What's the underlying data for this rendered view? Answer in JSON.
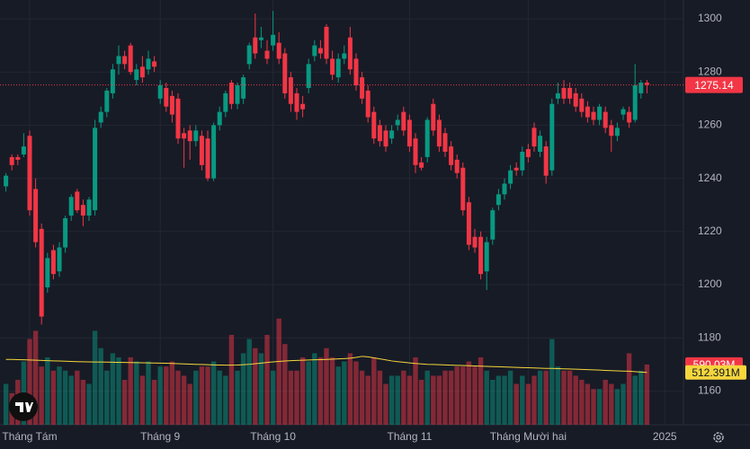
{
  "chart_data": {
    "type": "candlestick",
    "categories": [
      null,
      null,
      null,
      null,
      "Tháng Tám",
      null,
      null,
      null,
      null,
      null,
      null,
      null,
      null,
      null,
      null,
      null,
      null,
      null,
      null,
      null,
      null,
      null,
      null,
      null,
      null,
      null,
      "Tháng 9",
      null,
      null,
      null,
      null,
      null,
      null,
      null,
      null,
      null,
      null,
      null,
      null,
      null,
      null,
      null,
      null,
      null,
      null,
      "Tháng 10",
      null,
      null,
      null,
      null,
      null,
      null,
      null,
      null,
      null,
      null,
      null,
      null,
      null,
      null,
      null,
      null,
      null,
      null,
      null,
      null,
      null,
      null,
      "Tháng 11",
      null,
      null,
      null,
      null,
      null,
      null,
      null,
      null,
      null,
      null,
      null,
      null,
      null,
      null,
      null,
      null,
      null,
      null,
      null,
      "Tháng Mười hai",
      null,
      null,
      null,
      null,
      null,
      null,
      null,
      null,
      null,
      null,
      null,
      null,
      null,
      null,
      null,
      null,
      null,
      null,
      null,
      null,
      null,
      null,
      "2025"
    ],
    "open": [
      1237,
      1248,
      1248,
      1249,
      1256,
      1236,
      1221,
      1199,
      1213,
      1205,
      1214,
      1226,
      1235,
      1230,
      1226,
      1228,
      1261,
      1265,
      1272,
      1283,
      1286,
      1290,
      1277,
      1282,
      1281,
      1284,
      1270,
      1274,
      1271,
      1270,
      1257,
      1258,
      1254,
      1256,
      1255,
      1240,
      1260,
      1265,
      1276,
      1268,
      1270,
      1283,
      1293,
      1292,
      1288,
      1290,
      1291,
      1287,
      1278,
      1272,
      1268,
      1274,
      1286,
      1289,
      1297,
      1285,
      1278,
      1285,
      1293,
      1285,
      1278,
      1273,
      1265,
      1260,
      1258,
      1255,
      1260,
      1265,
      1262,
      1255,
      1246,
      1248,
      1268,
      1262,
      1257,
      1252,
      1247,
      1244,
      1231,
      1218,
      1218,
      1205,
      1217,
      1230,
      1234,
      1238,
      1244,
      1243,
      1251,
      1259,
      1250,
      1252,
      1243,
      1270,
      1274,
      1274,
      1272,
      1270,
      1267,
      1265,
      1262,
      1265,
      1260,
      1256,
      1264,
      1265,
      1262,
      1272,
      1276,
      null,
      null,
      null
    ],
    "high": [
      1242,
      1249,
      1249,
      1257,
      1258,
      1240,
      1223,
      1212,
      1215,
      1216,
      1226,
      1234,
      1236,
      1232,
      1233,
      1262,
      1267,
      1274,
      1283,
      1290,
      1288,
      1291,
      1283,
      1286,
      1288,
      1286,
      1277,
      1276,
      1273,
      1272,
      1259,
      1260,
      1260,
      1258,
      1258,
      1261,
      1267,
      1273,
      1277,
      1276,
      1279,
      1291,
      1302,
      1297,
      1292,
      1303,
      1295,
      1289,
      1280,
      1274,
      1271,
      1285,
      1292,
      1292,
      1298,
      1288,
      1287,
      1290,
      1297,
      1287,
      1280,
      1275,
      1267,
      1262,
      1260,
      1260,
      1264,
      1267,
      1264,
      1257,
      1248,
      1263,
      1270,
      1264,
      1259,
      1254,
      1249,
      1246,
      1233,
      1221,
      1220,
      1218,
      1229,
      1236,
      1240,
      1245,
      1246,
      1252,
      1253,
      1261,
      1258,
      1254,
      1270,
      1276,
      1277,
      1276,
      1274,
      1272,
      1269,
      1267,
      1268,
      1267,
      1262,
      1261,
      1267,
      1267,
      1283,
      1277,
      1277,
      null,
      null,
      null
    ],
    "low": [
      1235,
      1243,
      1245,
      1248,
      1226,
      1214,
      1185,
      1197,
      1202,
      1203,
      1212,
      1224,
      1227,
      1222,
      1224,
      1226,
      1259,
      1263,
      1270,
      1279,
      1281,
      1279,
      1275,
      1276,
      1279,
      1280,
      1268,
      1265,
      1261,
      1253,
      1244,
      1247,
      1252,
      1243,
      1239,
      1239,
      1258,
      1263,
      1266,
      1266,
      1268,
      1281,
      1285,
      1289,
      1283,
      1288,
      1283,
      1270,
      1265,
      1262,
      1263,
      1272,
      1284,
      1285,
      1283,
      1277,
      1276,
      1283,
      1279,
      1273,
      1268,
      1261,
      1253,
      1252,
      1250,
      1253,
      1258,
      1256,
      1250,
      1242,
      1243,
      1246,
      1256,
      1250,
      1248,
      1243,
      1240,
      1226,
      1213,
      1212,
      1202,
      1198,
      1215,
      1228,
      1232,
      1236,
      1241,
      1241,
      1246,
      1250,
      1248,
      1238,
      1241,
      1268,
      1268,
      1268,
      1265,
      1263,
      1261,
      1260,
      1260,
      1257,
      1250,
      1254,
      1262,
      1259,
      1261,
      1270,
      1272,
      null,
      null,
      null
    ],
    "close": [
      1241,
      1245,
      1247,
      1252,
      1228,
      1216,
      1188,
      1210,
      1204,
      1214,
      1225,
      1233,
      1228,
      1226,
      1232,
      1259,
      1265,
      1273,
      1281,
      1286,
      1283,
      1280,
      1281,
      1278,
      1285,
      1282,
      1275,
      1267,
      1264,
      1255,
      1255,
      1254,
      1258,
      1245,
      1240,
      1260,
      1265,
      1272,
      1268,
      1275,
      1278,
      1290,
      1287,
      1293,
      1285,
      1294,
      1285,
      1272,
      1268,
      1265,
      1266,
      1283,
      1290,
      1287,
      1285,
      1279,
      1285,
      1287,
      1281,
      1275,
      1270,
      1263,
      1255,
      1254,
      1252,
      1258,
      1262,
      1258,
      1252,
      1245,
      1244,
      1262,
      1258,
      1252,
      1250,
      1245,
      1242,
      1228,
      1215,
      1214,
      1204,
      1216,
      1228,
      1234,
      1238,
      1243,
      1243,
      1250,
      1248,
      1252,
      1256,
      1241,
      1268,
      1272,
      1270,
      1270,
      1267,
      1265,
      1263,
      1262,
      1267,
      1259,
      1256,
      1259,
      1266,
      1261,
      1275,
      1276,
      1275.14,
      null,
      null,
      null
    ],
    "volume": [
      400,
      310,
      440,
      620,
      840,
      920,
      570,
      660,
      530,
      570,
      530,
      480,
      530,
      440,
      400,
      920,
      750,
      530,
      700,
      660,
      440,
      660,
      620,
      480,
      620,
      440,
      570,
      570,
      620,
      530,
      480,
      400,
      530,
      570,
      570,
      620,
      530,
      480,
      880,
      530,
      700,
      840,
      750,
      700,
      880,
      530,
      1040,
      790,
      530,
      530,
      660,
      620,
      700,
      660,
      750,
      660,
      570,
      620,
      700,
      620,
      530,
      480,
      660,
      530,
      400,
      480,
      480,
      530,
      480,
      660,
      440,
      530,
      480,
      480,
      530,
      530,
      570,
      570,
      620,
      570,
      660,
      530,
      440,
      480,
      480,
      530,
      400,
      480,
      400,
      480,
      530,
      530,
      840,
      570,
      530,
      530,
      480,
      440,
      400,
      350,
      350,
      440,
      400,
      350,
      400,
      700,
      480,
      530,
      590.03,
      null,
      null,
      null
    ],
    "volume_ma": [
      640,
      640,
      638,
      636,
      634,
      632,
      630,
      628,
      626,
      624,
      622,
      620,
      618,
      617,
      616,
      615,
      614,
      613,
      612,
      611,
      610,
      609,
      608,
      607,
      606,
      605,
      604,
      602,
      600,
      598,
      596,
      594,
      592,
      590,
      588,
      586,
      585,
      584,
      584,
      585,
      588,
      592,
      598,
      604,
      610,
      616,
      620,
      624,
      628,
      630,
      632,
      634,
      636,
      638,
      640,
      642,
      645,
      648,
      652,
      660,
      670,
      665,
      655,
      645,
      635,
      625,
      618,
      612,
      606,
      600,
      596,
      592,
      590,
      588,
      586,
      584,
      582,
      580,
      578,
      576,
      574,
      572,
      570,
      568,
      566,
      564,
      562,
      560,
      558,
      556,
      554,
      552,
      552,
      550,
      548,
      546,
      544,
      542,
      540,
      538,
      535,
      532,
      530,
      528,
      526,
      524,
      520,
      516,
      512.391,
      null,
      null,
      null
    ],
    "volume_last_label": "590.03M",
    "volume_ma_last_label": "512.391M",
    "up_color": "#089981",
    "down_color": "#f23645",
    "ma_color": "#f5d63d",
    "ylim": [
      1147.3,
      1307.1
    ],
    "yticks": [
      1160,
      1180,
      1200,
      1220,
      1240,
      1260,
      1280,
      1300
    ],
    "volume_lim": [
      0,
      4160
    ],
    "grid": true
  }
}
